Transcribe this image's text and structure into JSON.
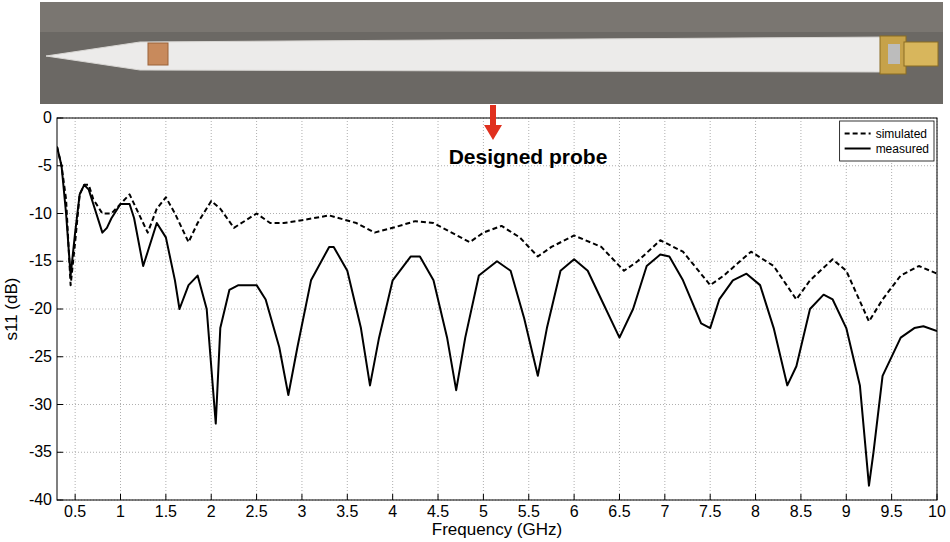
{
  "chart_data": {
    "type": "line",
    "annotation": "Designed probe",
    "x_label": "Frequency (GHz)",
    "y_label": "s11 (dB)",
    "xlim": [
      0.3,
      10
    ],
    "xticks": [
      0.5,
      1,
      1.5,
      2,
      2.5,
      3,
      3.5,
      4,
      4.5,
      5,
      5.5,
      6,
      6.5,
      7,
      7.5,
      8,
      8.5,
      9,
      9.5,
      10
    ],
    "ylim": [
      -40,
      0
    ],
    "yticks": [
      -40,
      -35,
      -30,
      -25,
      -20,
      -15,
      -10,
      -5,
      0
    ],
    "grid": true,
    "legend": "upper right",
    "series": [
      {
        "name": "simulated",
        "color": "#000000",
        "line_style": "dashed",
        "x": [
          0.3,
          0.35,
          0.4,
          0.45,
          0.5,
          0.55,
          0.6,
          0.65,
          0.7,
          0.8,
          0.9,
          1.0,
          1.1,
          1.2,
          1.3,
          1.4,
          1.5,
          1.6,
          1.75,
          1.85,
          2.0,
          2.1,
          2.25,
          2.5,
          2.65,
          2.8,
          3.0,
          3.3,
          3.6,
          3.8,
          4.0,
          4.25,
          4.45,
          4.65,
          4.85,
          5.0,
          5.2,
          5.4,
          5.6,
          5.75,
          6.0,
          6.3,
          6.55,
          6.7,
          6.95,
          7.2,
          7.5,
          7.65,
          7.95,
          8.2,
          8.45,
          8.6,
          8.85,
          9.0,
          9.25,
          9.4,
          9.6,
          9.8,
          10.0
        ],
        "values": [
          -3,
          -5,
          -8.5,
          -17.5,
          -13,
          -8,
          -7,
          -7,
          -8.5,
          -10,
          -10,
          -9,
          -8,
          -10,
          -12,
          -9.5,
          -8.3,
          -10,
          -13,
          -11,
          -8.7,
          -9.5,
          -11.5,
          -10,
          -11,
          -11,
          -10.7,
          -10.2,
          -11,
          -12,
          -11.5,
          -10.8,
          -11,
          -12,
          -13,
          -12,
          -11.3,
          -12.5,
          -14.5,
          -13.5,
          -12.3,
          -13.5,
          -16,
          -15,
          -12.8,
          -14,
          -17.5,
          -16.5,
          -14,
          -15.5,
          -19,
          -17,
          -14.8,
          -16,
          -21.3,
          -19,
          -16.5,
          -15.5,
          -16.3
        ]
      },
      {
        "name": "measured",
        "color": "#000000",
        "line_style": "solid",
        "x": [
          0.3,
          0.35,
          0.4,
          0.45,
          0.5,
          0.55,
          0.6,
          0.65,
          0.7,
          0.8,
          0.85,
          0.9,
          1.0,
          1.1,
          1.15,
          1.25,
          1.3,
          1.4,
          1.5,
          1.6,
          1.65,
          1.75,
          1.85,
          1.95,
          2.05,
          2.1,
          2.2,
          2.3,
          2.4,
          2.5,
          2.6,
          2.75,
          2.85,
          2.95,
          3.1,
          3.3,
          3.35,
          3.5,
          3.65,
          3.75,
          3.85,
          4.0,
          4.2,
          4.3,
          4.45,
          4.6,
          4.7,
          4.8,
          4.95,
          5.15,
          5.3,
          5.45,
          5.6,
          5.7,
          5.85,
          6.0,
          6.15,
          6.3,
          6.5,
          6.65,
          6.8,
          6.95,
          7.05,
          7.2,
          7.4,
          7.5,
          7.6,
          7.75,
          7.9,
          8.05,
          8.2,
          8.35,
          8.45,
          8.6,
          8.75,
          8.85,
          9.0,
          9.15,
          9.25,
          9.3,
          9.4,
          9.6,
          9.75,
          9.85,
          10.0
        ],
        "values": [
          -3,
          -5,
          -10,
          -16.5,
          -12,
          -8,
          -7,
          -7.5,
          -9,
          -12,
          -11.5,
          -10.5,
          -9,
          -9,
          -10.5,
          -15.5,
          -14,
          -11,
          -12.5,
          -17,
          -20,
          -17.5,
          -16.5,
          -20,
          -32,
          -22,
          -18,
          -17.5,
          -17.5,
          -17.5,
          -19,
          -24,
          -29,
          -24,
          -17,
          -13.5,
          -13.5,
          -16,
          -22,
          -28,
          -23,
          -17,
          -14.5,
          -14.5,
          -17,
          -23,
          -28.5,
          -23,
          -16.5,
          -15,
          -16,
          -21,
          -27,
          -22,
          -16,
          -14.8,
          -16,
          -19,
          -23,
          -20,
          -15.5,
          -14.3,
          -14.5,
          -17,
          -21.5,
          -22,
          -19,
          -17,
          -16.3,
          -17.5,
          -22,
          -28,
          -26,
          -20,
          -18.5,
          -19,
          -22,
          -28,
          -38.5,
          -35,
          -27,
          -23,
          -22,
          -21.8,
          -22.3
        ]
      }
    ]
  }
}
